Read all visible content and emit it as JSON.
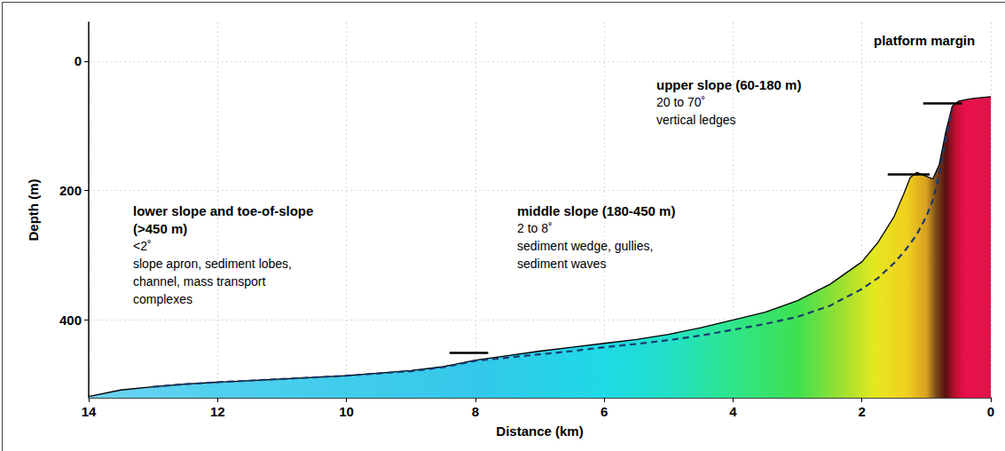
{
  "chart_data": {
    "type": "line",
    "x_label": "Distance (km)",
    "y_label": "Depth (m)",
    "xlim": [
      14,
      0
    ],
    "xticks": [
      14,
      12,
      10,
      8,
      6,
      4,
      2,
      0
    ],
    "ylim": [
      520,
      -60
    ],
    "yticks": [
      0,
      200,
      400
    ],
    "grid": true,
    "x": [
      14,
      13.5,
      13,
      12.5,
      12,
      11,
      10,
      9,
      8.5,
      8,
      7.5,
      7,
      6.5,
      6,
      5.5,
      5,
      4.5,
      4,
      3.5,
      3,
      2.5,
      2,
      1.75,
      1.5,
      1.35,
      1.25,
      1.15,
      1,
      0.9,
      0.8,
      0.7,
      0.6,
      0.5,
      0.3,
      0.1,
      0
    ],
    "series": [
      {
        "type": "area",
        "color": "#000000",
        "line_style": "solid",
        "values": [
          518,
          508,
          503,
          499,
          496,
          491,
          486,
          478,
          472,
          462,
          455,
          448,
          442,
          436,
          430,
          422,
          412,
          400,
          388,
          370,
          345,
          310,
          280,
          240,
          205,
          180,
          172,
          178,
          182,
          160,
          110,
          70,
          62,
          58,
          56,
          55
        ]
      },
      {
        "type": "line",
        "color": "#1a3a6e",
        "line_style": "dashed",
        "values": [
          null,
          null,
          503,
          499,
          496,
          491,
          486,
          479,
          473,
          463,
          458,
          453,
          448,
          442,
          437,
          431,
          424,
          415,
          406,
          395,
          378,
          352,
          335,
          312,
          295,
          282,
          268,
          240,
          215,
          175,
          120,
          74,
          null,
          null,
          null,
          null
        ]
      }
    ],
    "boundary_marks": [
      {
        "x": [
          1.05,
          0.45
        ],
        "y": 65
      },
      {
        "x": [
          1.6,
          0.95
        ],
        "y": 175
      },
      {
        "x": [
          8.4,
          7.8
        ],
        "y": 450
      }
    ],
    "annotations": [
      {
        "heading": [
          "platform margin"
        ],
        "text": []
      },
      {
        "heading": [
          "upper slope (60-180 m)"
        ],
        "text": [
          "20 to 70˚",
          "vertical ledges"
        ]
      },
      {
        "heading": [
          "middle slope (180-450 m)"
        ],
        "text": [
          "2 to 8˚",
          "sediment wedge, gullies,",
          "sediment waves"
        ]
      },
      {
        "heading": [
          "lower slope and toe-of-slope",
          "(>450 m)"
        ],
        "text": [
          "<2˚",
          "slope apron, sediment lobes,",
          "channel, mass transport",
          "complexes"
        ]
      }
    ]
  }
}
